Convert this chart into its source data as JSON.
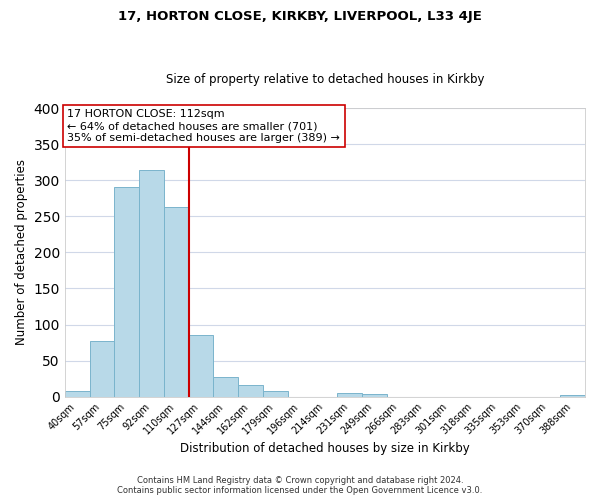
{
  "title": "17, HORTON CLOSE, KIRKBY, LIVERPOOL, L33 4JE",
  "subtitle": "Size of property relative to detached houses in Kirkby",
  "xlabel": "Distribution of detached houses by size in Kirkby",
  "ylabel": "Number of detached properties",
  "bin_labels": [
    "40sqm",
    "57sqm",
    "75sqm",
    "92sqm",
    "110sqm",
    "127sqm",
    "144sqm",
    "162sqm",
    "179sqm",
    "196sqm",
    "214sqm",
    "231sqm",
    "249sqm",
    "266sqm",
    "283sqm",
    "301sqm",
    "318sqm",
    "335sqm",
    "353sqm",
    "370sqm",
    "388sqm"
  ],
  "bar_values": [
    8,
    77,
    290,
    314,
    263,
    85,
    27,
    16,
    8,
    0,
    0,
    5,
    4,
    0,
    0,
    0,
    0,
    0,
    0,
    0,
    3
  ],
  "bar_color": "#b8d9e8",
  "bar_edge_color": "#7ab4cc",
  "property_line_color": "#cc0000",
  "property_line_index": 4,
  "annotation_text": "17 HORTON CLOSE: 112sqm\n← 64% of detached houses are smaller (701)\n35% of semi-detached houses are larger (389) →",
  "annotation_box_color": "#ffffff",
  "annotation_box_edge": "#cc0000",
  "ylim": [
    0,
    400
  ],
  "yticks": [
    0,
    50,
    100,
    150,
    200,
    250,
    300,
    350,
    400
  ],
  "footer_line1": "Contains HM Land Registry data © Crown copyright and database right 2024.",
  "footer_line2": "Contains public sector information licensed under the Open Government Licence v3.0.",
  "background_color": "#ffffff",
  "grid_color": "#d0d8e8",
  "title_fontsize": 9.5,
  "subtitle_fontsize": 8.5,
  "ylabel_fontsize": 8.5,
  "xlabel_fontsize": 8.5,
  "tick_fontsize": 7,
  "annotation_fontsize": 8,
  "footer_fontsize": 6
}
